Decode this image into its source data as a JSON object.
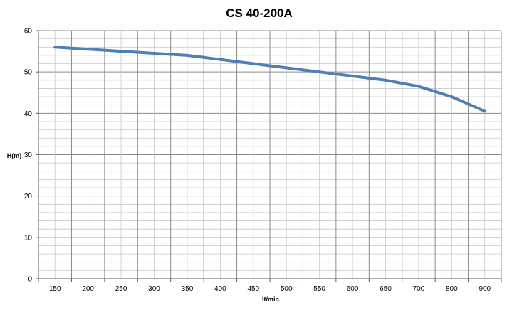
{
  "chart_data": {
    "type": "line",
    "title": "CS 40-200A",
    "xlabel": "lt/min",
    "ylabel": "H(m)",
    "xlim": [
      150,
      900
    ],
    "ylim": [
      0,
      60
    ],
    "x_ticks": [
      "150",
      "200",
      "250",
      "300",
      "350",
      "400",
      "450",
      "500",
      "550",
      "600",
      "650",
      "700",
      "800",
      "900"
    ],
    "y_ticks": [
      "0",
      "10",
      "20",
      "30",
      "40",
      "50",
      "60"
    ],
    "y_major_step": 10,
    "y_minor_step": 2,
    "grid": true,
    "legend": "none",
    "series": [
      {
        "color": "#4f7fb2",
        "points": [
          {
            "x": "150",
            "y": 56.0
          },
          {
            "x": "200",
            "y": 55.5
          },
          {
            "x": "250",
            "y": 55.0
          },
          {
            "x": "300",
            "y": 54.5
          },
          {
            "x": "350",
            "y": 54.0
          },
          {
            "x": "400",
            "y": 53.0
          },
          {
            "x": "450",
            "y": 52.0
          },
          {
            "x": "500",
            "y": 51.0
          },
          {
            "x": "550",
            "y": 50.0
          },
          {
            "x": "600",
            "y": 49.0
          },
          {
            "x": "650",
            "y": 48.0
          },
          {
            "x": "700",
            "y": 46.5
          },
          {
            "x": "800",
            "y": 44.0
          },
          {
            "x": "900",
            "y": 40.5
          }
        ]
      }
    ]
  }
}
